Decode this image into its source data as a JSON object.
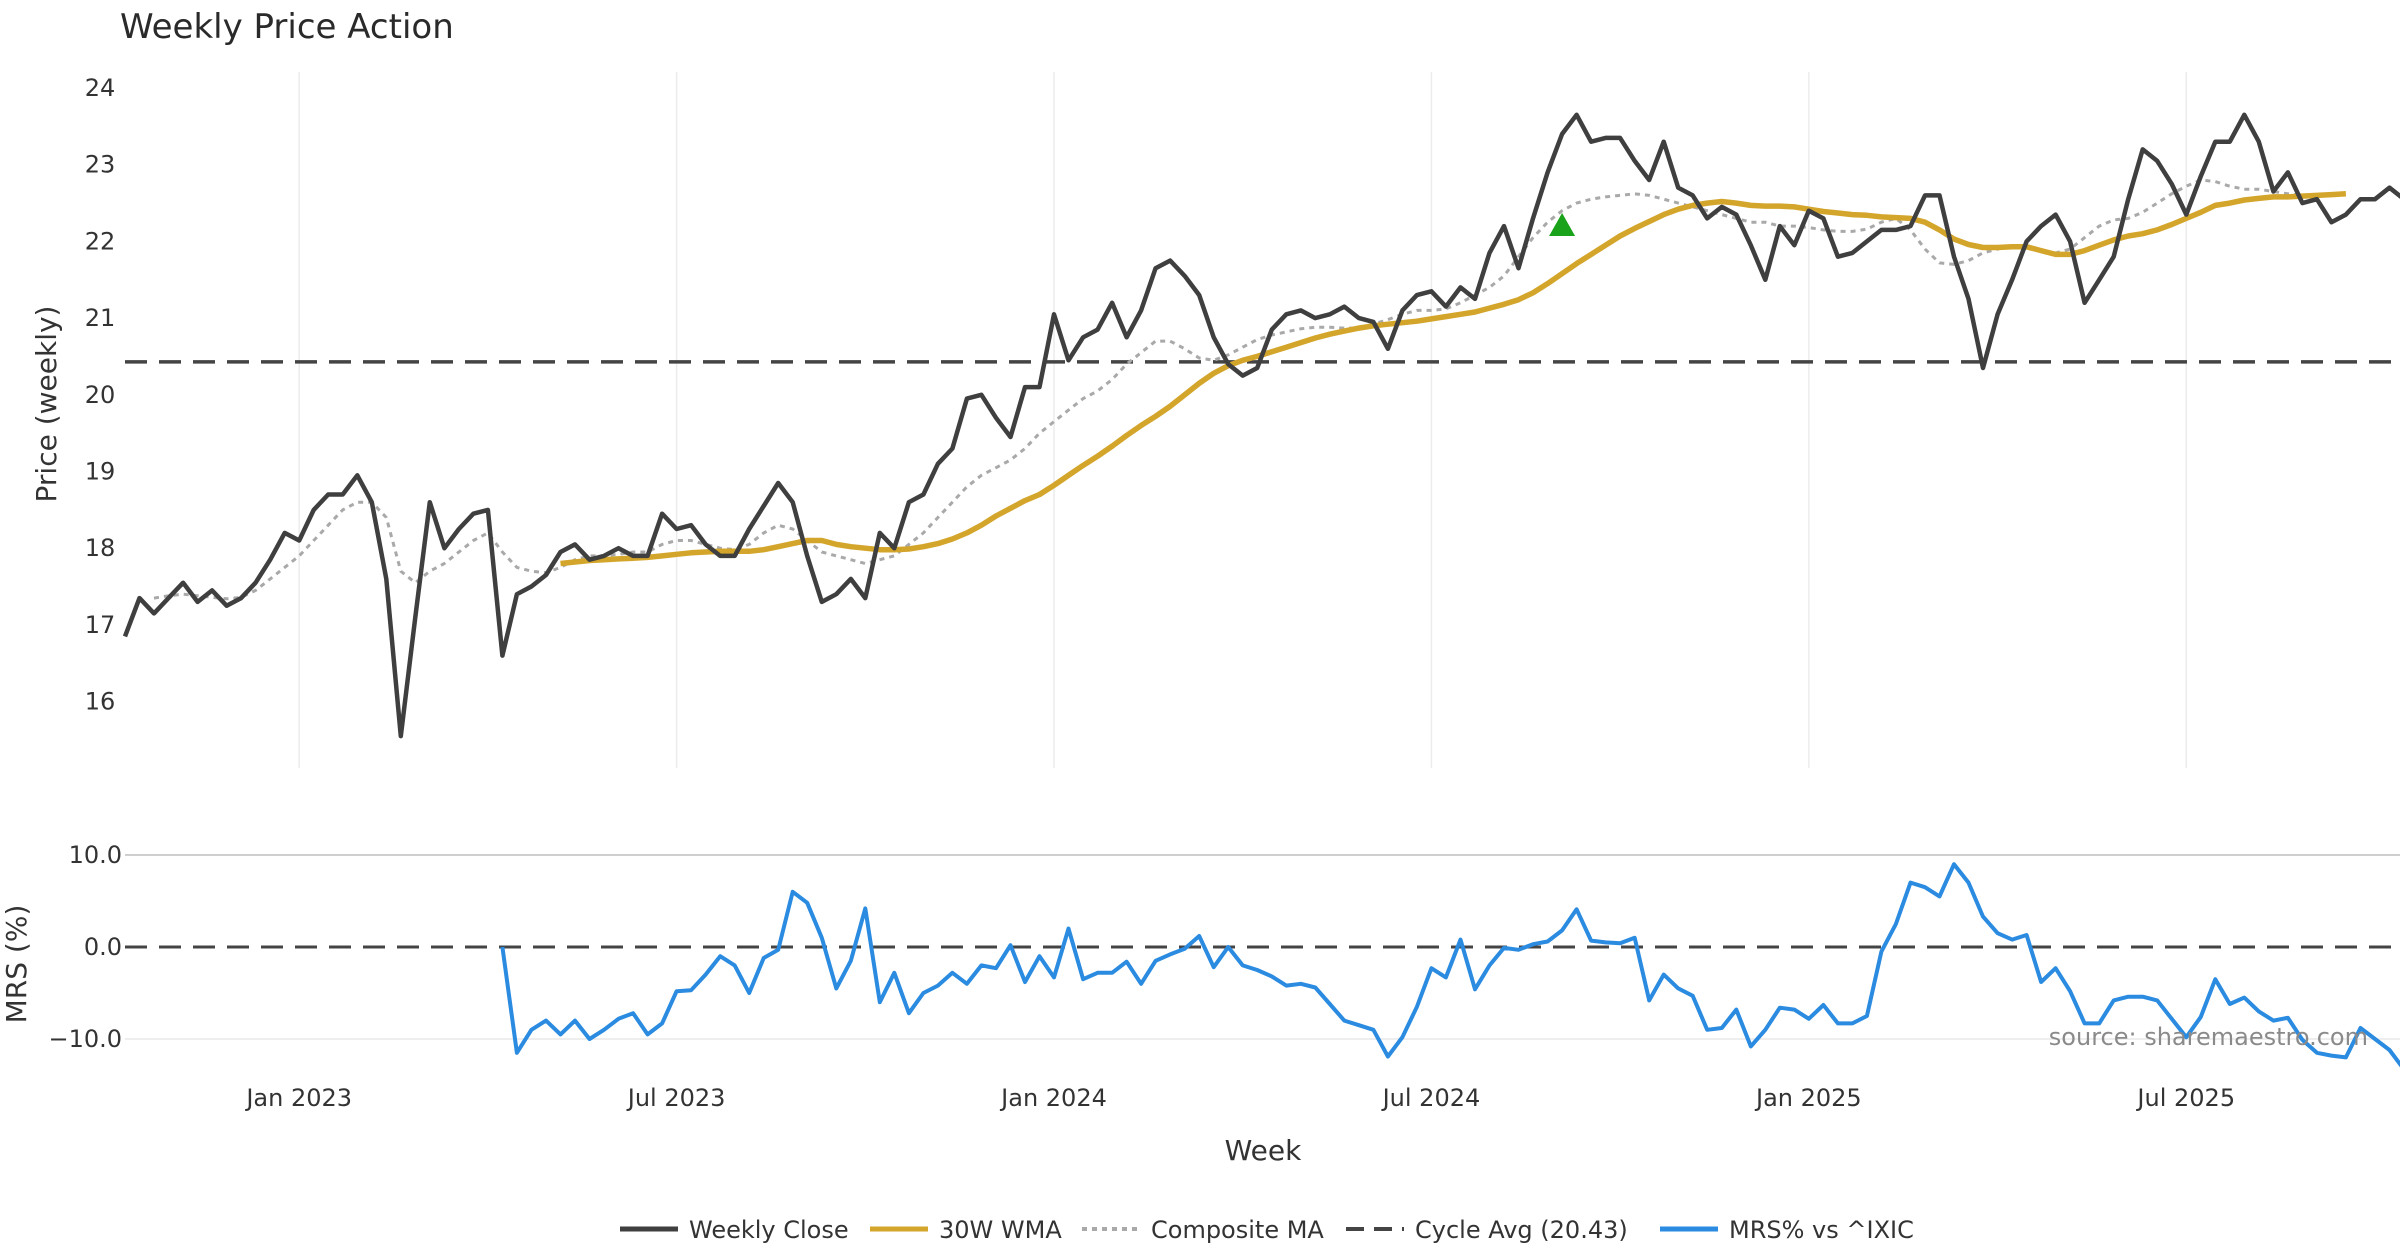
{
  "chart_data": [
    {
      "type": "line",
      "title": "Weekly Price Action",
      "ylabel": "Price (weekly)",
      "ylim": [
        15.1,
        24.2
      ],
      "yticks": [
        16,
        17,
        18,
        19,
        20,
        21,
        22,
        23,
        24
      ],
      "grid": "vertical",
      "x_start": "2022-10-10",
      "x_step_days": 7,
      "series": [
        {
          "name": "Weekly Close",
          "color": "#3f3f3f",
          "style": "solid",
          "values": [
            16.85,
            17.35,
            17.15,
            17.35,
            17.55,
            17.3,
            17.45,
            17.25,
            17.35,
            17.55,
            17.85,
            18.2,
            18.1,
            18.5,
            18.7,
            18.7,
            18.95,
            18.6,
            17.6,
            15.55,
            17.1,
            18.6,
            18.0,
            18.25,
            18.45,
            18.5,
            16.6,
            17.4,
            17.5,
            17.65,
            17.95,
            18.05,
            17.85,
            17.9,
            18.0,
            17.9,
            17.9,
            18.45,
            18.25,
            18.3,
            18.05,
            17.9,
            17.9,
            18.25,
            18.55,
            18.85,
            18.6,
            17.9,
            17.3,
            17.4,
            17.6,
            17.35,
            18.2,
            18.0,
            18.6,
            18.7,
            19.1,
            19.3,
            19.95,
            20.0,
            19.7,
            19.45,
            20.1,
            20.1,
            21.05,
            20.45,
            20.75,
            20.85,
            21.2,
            20.75,
            21.1,
            21.65,
            21.75,
            21.55,
            21.3,
            20.75,
            20.4,
            20.25,
            20.35,
            20.85,
            21.05,
            21.1,
            21.0,
            21.05,
            21.15,
            21.0,
            20.95,
            20.6,
            21.1,
            21.3,
            21.35,
            21.15,
            21.4,
            21.25,
            21.85,
            22.2,
            21.65,
            22.3,
            22.9,
            23.4,
            23.65,
            23.3,
            23.35,
            23.35,
            23.05,
            22.8,
            23.3,
            22.7,
            22.6,
            22.3,
            22.45,
            22.35,
            21.95,
            21.5,
            22.2,
            21.95,
            22.4,
            22.3,
            21.8,
            21.85,
            22.0,
            22.15,
            22.15,
            22.2,
            22.6,
            22.6,
            21.8,
            21.25,
            20.35,
            21.05,
            21.5,
            22.0,
            22.2,
            22.35,
            22.0,
            21.2,
            21.5,
            21.8,
            22.55,
            23.2,
            23.05,
            22.75,
            22.35,
            22.85,
            23.3,
            23.3,
            23.65,
            23.3,
            22.65,
            22.9,
            22.5,
            22.55,
            22.25,
            22.35,
            22.55,
            22.55,
            22.7,
            22.55
          ]
        },
        {
          "name": "30W WMA",
          "color": "#d4a52b",
          "style": "solid",
          "start_index": 30,
          "values": [
            17.8,
            17.82,
            17.84,
            17.85,
            17.86,
            17.87,
            17.88,
            17.9,
            17.92,
            17.94,
            17.95,
            17.96,
            17.96,
            17.96,
            17.98,
            18.02,
            18.06,
            18.1,
            18.1,
            18.05,
            18.02,
            18.0,
            17.98,
            17.98,
            17.99,
            18.02,
            18.06,
            18.12,
            18.2,
            18.3,
            18.42,
            18.52,
            18.62,
            18.7,
            18.82,
            18.95,
            19.08,
            19.2,
            19.33,
            19.47,
            19.6,
            19.72,
            19.85,
            20.0,
            20.15,
            20.28,
            20.38,
            20.45,
            20.5,
            20.56,
            20.62,
            20.68,
            20.74,
            20.79,
            20.83,
            20.87,
            20.9,
            20.92,
            20.94,
            20.96,
            20.99,
            21.02,
            21.05,
            21.08,
            21.13,
            21.18,
            21.24,
            21.33,
            21.45,
            21.58,
            21.71,
            21.83,
            21.95,
            22.07,
            22.17,
            22.26,
            22.35,
            22.42,
            22.47,
            22.5,
            22.52,
            22.5,
            22.47,
            22.46,
            22.46,
            22.45,
            22.42,
            22.39,
            22.37,
            22.35,
            22.34,
            22.32,
            22.31,
            22.3,
            22.25,
            22.15,
            22.03,
            21.96,
            21.92,
            21.92,
            21.93,
            21.93,
            21.88,
            21.83,
            21.83,
            21.88,
            21.95,
            22.02,
            22.07,
            22.1,
            22.15,
            22.22,
            22.3,
            22.38,
            22.47,
            22.5,
            22.54,
            22.56,
            22.58,
            22.58,
            22.59,
            22.6,
            22.61,
            22.62
          ]
        },
        {
          "name": "Composite MA",
          "color": "#a9a9a9",
          "style": "dotted",
          "start_index": 2,
          "values": [
            17.35,
            17.38,
            17.4,
            17.38,
            17.36,
            17.34,
            17.36,
            17.45,
            17.6,
            17.75,
            17.9,
            18.1,
            18.3,
            18.5,
            18.6,
            18.6,
            18.4,
            17.7,
            17.55,
            17.7,
            17.8,
            17.95,
            18.1,
            18.2,
            17.95,
            17.75,
            17.7,
            17.68,
            17.75,
            17.85,
            17.9,
            17.9,
            17.92,
            17.95,
            17.95,
            18.05,
            18.1,
            18.1,
            18.05,
            18.0,
            17.98,
            18.05,
            18.2,
            18.3,
            18.25,
            18.1,
            17.95,
            17.9,
            17.85,
            17.8,
            17.85,
            17.9,
            18.05,
            18.2,
            18.4,
            18.6,
            18.8,
            18.95,
            19.05,
            19.15,
            19.3,
            19.5,
            19.65,
            19.8,
            19.95,
            20.05,
            20.2,
            20.4,
            20.55,
            20.7,
            20.7,
            20.6,
            20.48,
            20.45,
            20.52,
            20.62,
            20.72,
            20.78,
            20.82,
            20.86,
            20.88,
            20.88,
            20.87,
            20.87,
            20.92,
            20.98,
            21.05,
            21.1,
            21.1,
            21.12,
            21.2,
            21.3,
            21.4,
            21.55,
            21.8,
            22.05,
            22.25,
            22.4,
            22.5,
            22.55,
            22.58,
            22.6,
            22.62,
            22.6,
            22.55,
            22.5,
            22.45,
            22.4,
            22.35,
            22.3,
            22.25,
            22.25,
            22.2,
            22.2,
            22.18,
            22.15,
            22.13,
            22.13,
            22.16,
            22.25,
            22.3,
            22.15,
            21.9,
            21.72,
            21.7,
            21.75,
            21.85,
            21.9,
            21.95,
            21.92,
            21.87,
            21.85,
            21.9,
            22.05,
            22.2,
            22.28,
            22.3,
            22.38,
            22.5,
            22.62,
            22.72,
            22.8,
            22.78,
            22.72,
            22.68,
            22.68,
            22.65,
            22.62,
            22.6
          ]
        },
        {
          "name": "Cycle Avg (20.43)",
          "color": "#444444",
          "style": "dashed",
          "constant": 20.43
        }
      ],
      "annotations": [
        {
          "type": "marker",
          "shape": "triangle-up",
          "color": "#1aa31a",
          "x_index": 99,
          "y": 22.2
        }
      ]
    },
    {
      "type": "line",
      "ylabel": "MRS (%)",
      "xlabel": "Week",
      "ylim": [
        -14.2,
        11.0
      ],
      "yticks": [
        10.0,
        0.0,
        -10.0
      ],
      "ytick_labels": [
        "10.0",
        "0.0",
        "−10.0"
      ],
      "series": [
        {
          "name": "MRS% vs ^IXIC",
          "color": "#2a8be0",
          "style": "solid",
          "start_index": 26,
          "values": [
            0.0,
            -11.5,
            -9.0,
            -8.0,
            -9.5,
            -8.0,
            -10.0,
            -9.0,
            -7.8,
            -7.2,
            -9.5,
            -8.3,
            -4.8,
            -4.7,
            -3.0,
            -1.0,
            -2.0,
            -5.0,
            -1.2,
            -0.3,
            6.0,
            4.8,
            1.0,
            -4.5,
            -1.5,
            4.2,
            -6.0,
            -2.8,
            -7.2,
            -5.0,
            -4.2,
            -2.8,
            -4.0,
            -2.0,
            -2.3,
            0.2,
            -3.8,
            -1.0,
            -3.3,
            2.0,
            -3.5,
            -2.8,
            -2.8,
            -1.6,
            -4.0,
            -1.5,
            -0.8,
            -0.2,
            1.2,
            -2.2,
            0.0,
            -2.0,
            -2.5,
            -3.2,
            -4.2,
            -4.0,
            -4.4,
            -6.2,
            -8.0,
            -8.5,
            -9.0,
            -11.9,
            -9.8,
            -6.5,
            -2.3,
            -3.3,
            0.8,
            -4.6,
            -2.0,
            -0.1,
            -0.3,
            0.3,
            0.6,
            1.8,
            4.1,
            0.7,
            0.5,
            0.4,
            1.0,
            -5.8,
            -3.0,
            -4.5,
            -5.3,
            -9.0,
            -8.8,
            -6.8,
            -10.8,
            -9.0,
            -6.6,
            -6.8,
            -7.8,
            -6.3,
            -8.3,
            -8.3,
            -7.5,
            -0.5,
            2.5,
            7.0,
            6.5,
            5.5,
            9.0,
            7.0,
            3.3,
            1.5,
            0.8,
            1.3,
            -3.8,
            -2.3,
            -4.8,
            -8.3,
            -8.3,
            -5.8,
            -5.4,
            -5.4,
            -5.8,
            -7.8,
            -9.8,
            -7.6,
            -3.5,
            -6.2,
            -5.5,
            -7.0,
            -8.0,
            -7.7,
            -10.1,
            -11.5,
            -11.8,
            -12.0,
            -8.8,
            -10.0,
            -11.2,
            -13.3
          ]
        }
      ]
    }
  ],
  "x_axis": {
    "label": "Week",
    "ticks": [
      {
        "label": "Jan 2023",
        "index": 12
      },
      {
        "label": "Jul 2023",
        "index": 38
      },
      {
        "label": "Jan 2024",
        "index": 64
      },
      {
        "label": "Jul 2024",
        "index": 90
      },
      {
        "label": "Jan 2025",
        "index": 116
      },
      {
        "label": "Jul 2025",
        "index": 142
      }
    ]
  },
  "source_note": "source: sharemaestro.com",
  "legend": {
    "placement": "bottom-center",
    "items": [
      {
        "label": "Weekly Close",
        "color": "#3f3f3f",
        "style": "solid"
      },
      {
        "label": "30W WMA",
        "color": "#d4a52b",
        "style": "solid"
      },
      {
        "label": "Composite MA",
        "color": "#a9a9a9",
        "style": "dotted"
      },
      {
        "label": "Cycle Avg (20.43)",
        "color": "#444444",
        "style": "dashed"
      },
      {
        "label": "MRS% vs ^IXIC",
        "color": "#2a8be0",
        "style": "solid"
      }
    ]
  }
}
